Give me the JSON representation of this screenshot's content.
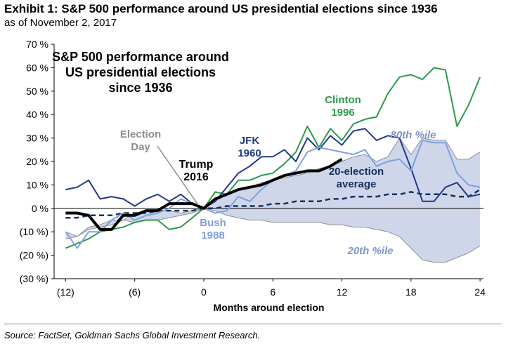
{
  "header": {
    "exhibit_title": "Exhibit 1: S&P 500 performance around US presidential elections since 1936",
    "subtitle": "as of November 2, 2017"
  },
  "footer": {
    "source": "Source: FactSet, Goldman Sachs Global Investment Research."
  },
  "chart_data": {
    "type": "line",
    "title": [
      "S&P 500 performance around",
      "US presidential elections",
      "since 1936"
    ],
    "xlabel": "Months around election",
    "ylabel": "",
    "xlim": [
      -13,
      24.3
    ],
    "ylim": [
      -30,
      70
    ],
    "x_ticks": [
      -12,
      -6,
      0,
      6,
      12,
      18,
      24
    ],
    "x_tick_labels": [
      "(12)",
      "(6)",
      "0",
      "6",
      "12",
      "18",
      "24"
    ],
    "y_ticks": [
      70,
      60,
      50,
      40,
      30,
      20,
      10,
      0,
      -10,
      -20,
      -30
    ],
    "y_tick_labels": [
      "70 %",
      "60 %",
      "50 %",
      "40 %",
      "30 %",
      "20 %",
      "10 %",
      "0 %",
      "(10 %)",
      "(20 %)",
      "(30 %)"
    ],
    "grid": false,
    "band": {
      "x": [
        -12,
        -11,
        -10,
        -9,
        -8,
        -7,
        -6,
        -5,
        -4,
        -3,
        -2,
        -1,
        0,
        1,
        2,
        3,
        4,
        5,
        6,
        7,
        8,
        9,
        10,
        11,
        12,
        13,
        14,
        15,
        16,
        17,
        18,
        19,
        20,
        21,
        22,
        23,
        24
      ],
      "upper": [
        -10,
        -12,
        -8,
        -7,
        -5,
        -5,
        -2,
        -1,
        -1,
        -1,
        -2,
        -1,
        0,
        3,
        6,
        8,
        9,
        11,
        12,
        13,
        14,
        15,
        17,
        18,
        20,
        22,
        23,
        20,
        22,
        30,
        23,
        30,
        29,
        29,
        21,
        21,
        24
      ],
      "lower": [
        -13,
        -12,
        -9,
        -8,
        -7,
        -5,
        -6,
        -5,
        -5,
        -4,
        -3,
        -2,
        0,
        -1,
        -3,
        -4,
        -5,
        -5,
        -6,
        -6,
        -6,
        -6,
        -6,
        -7,
        -7,
        -8,
        -8,
        -9,
        -10,
        -12,
        -17,
        -22,
        -23,
        -23,
        -21,
        -19,
        -16
      ],
      "labels": [
        "80th %ile",
        "20th %ile"
      ]
    },
    "series": [
      {
        "name": "Clinton 1996",
        "color": "#2e9a4a",
        "x": [
          -12,
          -11,
          -10,
          -9,
          -8,
          -7,
          -6,
          -5,
          -4,
          -3,
          -2,
          -1,
          0,
          1,
          2,
          3,
          4,
          5,
          6,
          7,
          8,
          9,
          10,
          11,
          12,
          13,
          14,
          15,
          16,
          17,
          18,
          19,
          20,
          21,
          22,
          23,
          24
        ],
        "values": [
          -17,
          -15,
          -13,
          -10,
          -9,
          -8,
          -6,
          -5,
          -5,
          -9,
          -8,
          -4,
          0,
          7,
          6,
          12,
          12,
          14,
          15,
          19,
          24,
          35,
          26,
          34,
          29,
          36,
          38,
          39,
          49,
          56,
          57,
          55,
          60,
          59,
          35,
          44,
          56
        ]
      },
      {
        "name": "JFK 1960",
        "color": "#1f3a8a",
        "x": [
          -12,
          -11,
          -10,
          -9,
          -8,
          -7,
          -6,
          -5,
          -4,
          -3,
          -2,
          -1,
          0,
          1,
          2,
          3,
          4,
          5,
          6,
          7,
          8,
          9,
          10,
          11,
          12,
          13,
          14,
          15,
          16,
          17,
          18,
          19,
          20,
          21,
          22,
          23,
          24
        ],
        "values": [
          8,
          9,
          12,
          4,
          5,
          4,
          1,
          4,
          6,
          3,
          6,
          2,
          0,
          3,
          9,
          15,
          18,
          22,
          22,
          25,
          20,
          30,
          25,
          31,
          27,
          33,
          34,
          29,
          31,
          30,
          17,
          3,
          3,
          9,
          11,
          5,
          6
        ]
      },
      {
        "name": "Bush 1988",
        "color": "#7f9fe0",
        "x": [
          -12,
          -11,
          -10,
          -9,
          -8,
          -7,
          -6,
          -5,
          -4,
          -3,
          -2,
          -1,
          0,
          1,
          2,
          3,
          4,
          5,
          6,
          7,
          8,
          9,
          10,
          11,
          12,
          13,
          14,
          15,
          16,
          17,
          18,
          19,
          20,
          21,
          22,
          23,
          24
        ],
        "values": [
          -10,
          -17,
          -10,
          -10,
          -5,
          -2,
          -5,
          -3,
          -2,
          0,
          4,
          2,
          0,
          -2,
          -1,
          5,
          3,
          8,
          12,
          14,
          16,
          24,
          26,
          25,
          24,
          23,
          25,
          18,
          20,
          21,
          16,
          29,
          28,
          28,
          15,
          10,
          9
        ]
      },
      {
        "name": "Trump 2016",
        "color": "#000000",
        "x": [
          -12,
          -11,
          -10,
          -9,
          -8,
          -7,
          -6,
          -5,
          -4,
          -3,
          -2,
          -1,
          0,
          1,
          2,
          3,
          4,
          5,
          6,
          7,
          8,
          9,
          10,
          11,
          12
        ],
        "values": [
          -2,
          -2,
          -3,
          -9,
          -9,
          -3,
          -3,
          -1,
          -1,
          2,
          2,
          2,
          0,
          4,
          6,
          8,
          9,
          10,
          12,
          14,
          15,
          16,
          16,
          18,
          21
        ]
      },
      {
        "name": "20-election average",
        "color": "#14305e",
        "dashed": true,
        "x": [
          -12,
          -11,
          -10,
          -9,
          -8,
          -7,
          -6,
          -5,
          -4,
          -3,
          -2,
          -1,
          0,
          1,
          2,
          3,
          4,
          5,
          6,
          7,
          8,
          9,
          10,
          11,
          12,
          13,
          14,
          15,
          16,
          17,
          18,
          19,
          20,
          21,
          22,
          23,
          24
        ],
        "values": [
          -4,
          -4,
          -3,
          -3,
          -3,
          -2,
          -2,
          -2,
          -1,
          -1,
          -1,
          -1,
          0,
          0,
          1,
          1,
          1,
          1,
          2,
          2,
          3,
          3,
          3,
          4,
          4,
          5,
          5,
          5,
          6,
          6,
          7,
          6,
          6,
          6,
          5,
          5,
          8
        ]
      }
    ],
    "annotations": {
      "election_day": [
        "Election",
        "Day"
      ],
      "trump": [
        "Trump",
        "2016"
      ],
      "jfk": [
        "JFK",
        "1960"
      ],
      "clinton": [
        "Clinton",
        "1996"
      ],
      "bush": [
        "Bush",
        "1988"
      ],
      "average": [
        "20-election",
        "average"
      ],
      "p80": "80th %ile",
      "p20": "20th %ile"
    },
    "colors": {
      "band_fill": "#cfd6ea",
      "band_edge": "#8a8f9a",
      "annotation_gray": "#8c8c8c",
      "percentile_text": "#7f93c8"
    }
  }
}
